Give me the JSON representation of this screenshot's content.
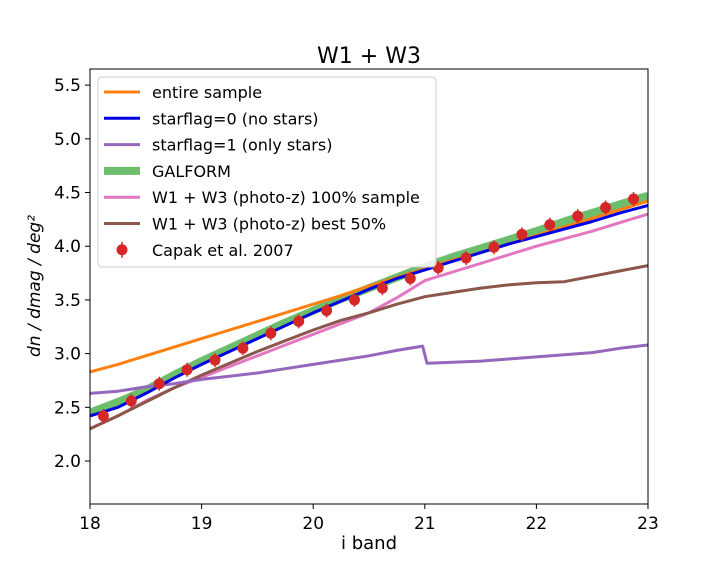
{
  "chart_data": {
    "type": "line",
    "title": "W1 + W3",
    "xlabel": "i band",
    "ylabel": "dn / dmag / deg²",
    "xlim": [
      18,
      23
    ],
    "ylim": [
      1.6,
      5.65
    ],
    "xticks": [
      {
        "value": 18,
        "label": "18"
      },
      {
        "value": 19,
        "label": "19"
      },
      {
        "value": 20,
        "label": "20"
      },
      {
        "value": 21,
        "label": "21"
      },
      {
        "value": 22,
        "label": "22"
      },
      {
        "value": 23,
        "label": "23"
      }
    ],
    "yticks": [
      {
        "value": 2.0,
        "label": "2.0"
      },
      {
        "value": 2.5,
        "label": "2.5"
      },
      {
        "value": 3.0,
        "label": "3.0"
      },
      {
        "value": 3.5,
        "label": "3.5"
      },
      {
        "value": 4.0,
        "label": "4.0"
      },
      {
        "value": 4.5,
        "label": "4.5"
      },
      {
        "value": 5.0,
        "label": "5.0"
      },
      {
        "value": 5.5,
        "label": "5.5"
      }
    ],
    "grid": false,
    "legend_position": "upper-left",
    "series": [
      {
        "name": "entire sample",
        "color": "#ff7f0e",
        "kind": "line",
        "x": [
          18.0,
          18.25,
          18.5,
          18.75,
          19.0,
          19.25,
          19.5,
          19.75,
          20.0,
          20.25,
          20.5,
          20.75,
          21.0,
          21.25,
          21.5,
          21.75,
          22.0,
          22.25,
          22.5,
          22.75,
          23.0
        ],
        "y": [
          2.83,
          2.9,
          2.98,
          3.06,
          3.14,
          3.22,
          3.3,
          3.38,
          3.46,
          3.54,
          3.63,
          3.71,
          3.79,
          3.87,
          3.94,
          4.02,
          4.1,
          4.18,
          4.26,
          4.34,
          4.42
        ]
      },
      {
        "name": "starflag=0 (no stars)",
        "color": "#0000e6",
        "kind": "line",
        "x": [
          18.0,
          18.25,
          18.5,
          18.75,
          19.0,
          19.25,
          19.5,
          19.75,
          20.0,
          20.25,
          20.5,
          20.75,
          21.0,
          21.25,
          21.5,
          21.75,
          22.0,
          22.25,
          22.5,
          22.75,
          23.0
        ],
        "y": [
          2.42,
          2.5,
          2.63,
          2.77,
          2.9,
          3.02,
          3.14,
          3.26,
          3.38,
          3.49,
          3.6,
          3.7,
          3.78,
          3.86,
          3.94,
          4.02,
          4.09,
          4.16,
          4.23,
          4.31,
          4.38
        ]
      },
      {
        "name": "starflag=1 (only stars)",
        "color": "#9467bd",
        "kind": "line",
        "x": [
          18.0,
          18.25,
          18.5,
          18.75,
          19.0,
          19.25,
          19.5,
          19.75,
          20.0,
          20.25,
          20.5,
          20.75,
          20.98,
          21.02,
          21.25,
          21.5,
          21.75,
          22.0,
          22.25,
          22.5,
          22.75,
          23.0
        ],
        "y": [
          2.63,
          2.65,
          2.69,
          2.72,
          2.76,
          2.79,
          2.82,
          2.86,
          2.9,
          2.94,
          2.98,
          3.03,
          3.07,
          2.91,
          2.92,
          2.93,
          2.95,
          2.97,
          2.99,
          3.01,
          3.05,
          3.08
        ]
      },
      {
        "name": "GALFORM",
        "color": "#6cbd6c",
        "kind": "thick-line",
        "x": [
          18.0,
          18.25,
          18.5,
          18.75,
          19.0,
          19.25,
          19.5,
          19.75,
          20.0,
          20.25,
          20.5,
          20.75,
          21.0,
          21.25,
          21.5,
          21.75,
          22.0,
          22.25,
          22.5,
          22.75,
          23.0
        ],
        "y": [
          2.45,
          2.55,
          2.66,
          2.8,
          2.93,
          3.05,
          3.17,
          3.29,
          3.4,
          3.51,
          3.61,
          3.71,
          3.81,
          3.9,
          3.98,
          4.06,
          4.14,
          4.23,
          4.31,
          4.39,
          4.47
        ]
      },
      {
        "name": "W1 + W3 (photo-z) 100% sample",
        "color": "#e377c2",
        "kind": "line",
        "x": [
          18.0,
          18.25,
          18.5,
          18.75,
          19.0,
          19.25,
          19.5,
          19.75,
          20.0,
          20.25,
          20.5,
          20.75,
          21.0,
          21.25,
          21.5,
          21.75,
          22.0,
          22.25,
          22.5,
          22.75,
          23.0
        ],
        "y": [
          2.3,
          2.42,
          2.56,
          2.68,
          2.78,
          2.88,
          2.98,
          3.08,
          3.18,
          3.28,
          3.38,
          3.52,
          3.68,
          3.76,
          3.84,
          3.92,
          4.0,
          4.07,
          4.14,
          4.22,
          4.3
        ]
      },
      {
        "name": "W1 + W3 (photo-z) best 50%",
        "color": "#8c564b",
        "kind": "line",
        "x": [
          18.0,
          18.25,
          18.5,
          18.75,
          19.0,
          19.25,
          19.5,
          19.75,
          20.0,
          20.25,
          20.5,
          20.75,
          21.0,
          21.25,
          21.5,
          21.75,
          22.0,
          22.25,
          22.5,
          22.75,
          23.0
        ],
        "y": [
          2.3,
          2.42,
          2.55,
          2.68,
          2.8,
          2.91,
          3.02,
          3.12,
          3.22,
          3.31,
          3.38,
          3.46,
          3.53,
          3.57,
          3.61,
          3.64,
          3.66,
          3.67,
          3.72,
          3.77,
          3.82
        ]
      },
      {
        "name": "Capak et al. 2007",
        "color": "#d62728",
        "kind": "markers",
        "x": [
          18.12,
          18.37,
          18.62,
          18.87,
          19.12,
          19.37,
          19.62,
          19.87,
          20.12,
          20.37,
          20.62,
          20.87,
          21.12,
          21.37,
          21.62,
          21.87,
          22.12,
          22.37,
          22.62,
          22.87
        ],
        "y": [
          2.42,
          2.56,
          2.72,
          2.85,
          2.94,
          3.05,
          3.19,
          3.3,
          3.4,
          3.5,
          3.61,
          3.7,
          3.8,
          3.89,
          3.99,
          4.11,
          4.2,
          4.28,
          4.36,
          4.44
        ]
      }
    ]
  }
}
